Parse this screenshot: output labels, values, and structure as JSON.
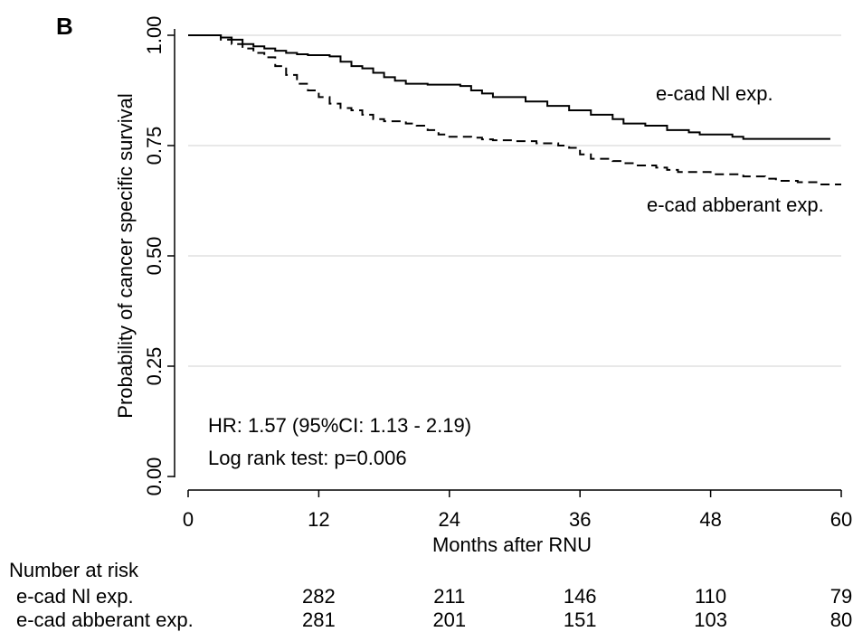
{
  "chart_data": {
    "type": "line",
    "panel_label": "B",
    "xlabel": "Months after RNU",
    "ylabel": "Probability of cancer specific survival",
    "xlim": [
      0,
      60
    ],
    "ylim": [
      0,
      1
    ],
    "x_ticks": [
      0,
      12,
      24,
      36,
      48,
      60
    ],
    "x_tick_labels": [
      "0",
      "12",
      "24",
      "36",
      "48",
      "60"
    ],
    "y_ticks": [
      0,
      0.25,
      0.5,
      0.75,
      1
    ],
    "y_tick_labels": [
      "0.00",
      "0.25",
      "0.50",
      "0.75",
      "1.00"
    ],
    "grid": "horizontal",
    "series": [
      {
        "name": "e-cad Nl exp.",
        "line_style": "solid",
        "color": "#000000",
        "points": [
          [
            0,
            1.0
          ],
          [
            3,
            0.995
          ],
          [
            4,
            0.99
          ],
          [
            5,
            0.98
          ],
          [
            6,
            0.975
          ],
          [
            7,
            0.97
          ],
          [
            8,
            0.965
          ],
          [
            9,
            0.96
          ],
          [
            10,
            0.957
          ],
          [
            11,
            0.955
          ],
          [
            13,
            0.952
          ],
          [
            14,
            0.94
          ],
          [
            15,
            0.93
          ],
          [
            16,
            0.925
          ],
          [
            17,
            0.915
          ],
          [
            18,
            0.905
          ],
          [
            19,
            0.897
          ],
          [
            20,
            0.89
          ],
          [
            22,
            0.888
          ],
          [
            25,
            0.885
          ],
          [
            26,
            0.875
          ],
          [
            27,
            0.868
          ],
          [
            28,
            0.86
          ],
          [
            31,
            0.85
          ],
          [
            33,
            0.84
          ],
          [
            35,
            0.83
          ],
          [
            37,
            0.82
          ],
          [
            39,
            0.81
          ],
          [
            40,
            0.8
          ],
          [
            42,
            0.795
          ],
          [
            44,
            0.785
          ],
          [
            46,
            0.78
          ],
          [
            47,
            0.775
          ],
          [
            50,
            0.77
          ],
          [
            51,
            0.765
          ],
          [
            59,
            0.765
          ]
        ]
      },
      {
        "name": "e-cad abberant exp.",
        "line_style": "dashed",
        "color": "#000000",
        "points": [
          [
            0,
            1.0
          ],
          [
            3,
            0.99
          ],
          [
            4,
            0.98
          ],
          [
            5,
            0.97
          ],
          [
            6,
            0.96
          ],
          [
            7,
            0.95
          ],
          [
            8,
            0.93
          ],
          [
            9,
            0.91
          ],
          [
            10,
            0.89
          ],
          [
            11,
            0.875
          ],
          [
            12,
            0.86
          ],
          [
            13,
            0.845
          ],
          [
            14,
            0.835
          ],
          [
            15,
            0.83
          ],
          [
            16,
            0.82
          ],
          [
            17,
            0.81
          ],
          [
            18,
            0.805
          ],
          [
            20,
            0.8
          ],
          [
            21,
            0.795
          ],
          [
            22,
            0.785
          ],
          [
            23,
            0.775
          ],
          [
            24,
            0.77
          ],
          [
            26,
            0.768
          ],
          [
            27,
            0.764
          ],
          [
            28,
            0.762
          ],
          [
            30,
            0.76
          ],
          [
            32,
            0.755
          ],
          [
            34,
            0.75
          ],
          [
            35,
            0.745
          ],
          [
            36,
            0.73
          ],
          [
            37,
            0.72
          ],
          [
            39,
            0.715
          ],
          [
            40,
            0.71
          ],
          [
            41,
            0.705
          ],
          [
            43,
            0.7
          ],
          [
            44,
            0.695
          ],
          [
            45,
            0.69
          ],
          [
            48,
            0.685
          ],
          [
            51,
            0.68
          ],
          [
            53,
            0.675
          ],
          [
            54,
            0.67
          ],
          [
            56,
            0.667
          ],
          [
            58,
            0.662
          ],
          [
            60,
            0.662
          ]
        ]
      }
    ],
    "annotations": [
      "HR: 1.57 (95%CI: 1.13 - 2.19)",
      "Log rank test: p=0.006"
    ],
    "risk_table": {
      "title": "Number at risk",
      "rows": [
        {
          "label": "e-cad Nl exp.",
          "values": [
            "282",
            "211",
            "146",
            "110",
            "79"
          ]
        },
        {
          "label": "e-cad abberant exp.",
          "values": [
            "281",
            "201",
            "151",
            "103",
            "80"
          ]
        }
      ]
    }
  }
}
